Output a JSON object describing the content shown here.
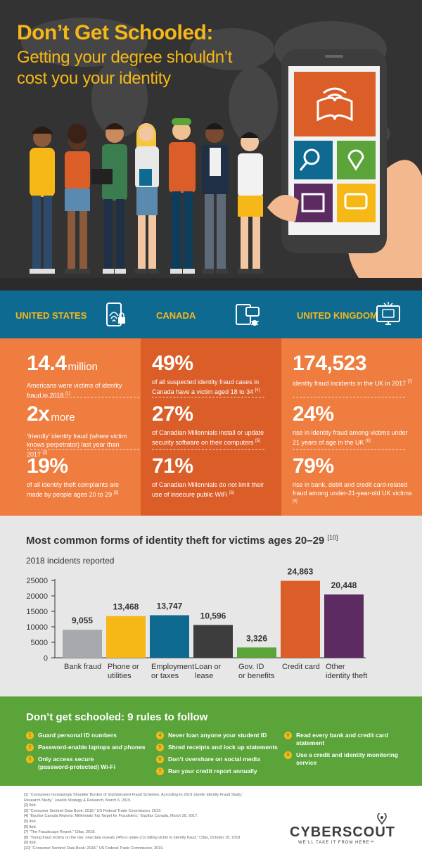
{
  "hero": {
    "title": "Don’t Get Schooled:",
    "subtitle_line1": "Getting your degree shouldn’t",
    "subtitle_line2": "cost you your identity"
  },
  "stats": {
    "columns": [
      {
        "country": "UNITED STATES",
        "icon": "fingerprint-lock-icon",
        "items": [
          {
            "value": "14.4",
            "unit": "million",
            "desc": "Americans were victims of identity fraud in 2018",
            "ref": "[1]"
          },
          {
            "value": "2x",
            "unit": "more",
            "desc": "‘friendly’ identity fraud (where victim knows perpetrator) last year than 2017",
            "ref": "[2]"
          },
          {
            "value": "19%",
            "unit": "",
            "desc": "of all identity theft complaints are made by people ages 20 to 29",
            "ref": "[3]"
          }
        ]
      },
      {
        "country": "CANADA",
        "icon": "devices-bug-icon",
        "items": [
          {
            "value": "49%",
            "unit": "",
            "desc": "of all suspected identity fraud cases in Canada have a victim aged 18 to 34",
            "ref": "[4]"
          },
          {
            "value": "27%",
            "unit": "",
            "desc": "of Canadian Millennials install or update security software on their computers",
            "ref": "[5]"
          },
          {
            "value": "71%",
            "unit": "",
            "desc": "of Canadian Millennials do not limit their use of insecure public WiFi",
            "ref": "[6]"
          }
        ]
      },
      {
        "country": "UNITED KINGDOM",
        "icon": "monitor-card-icon",
        "items": [
          {
            "value": "174,523",
            "unit": "",
            "desc": "identity fraud incidents in the UK in 2017",
            "ref": "[7]"
          },
          {
            "value": "24%",
            "unit": "",
            "desc": "rise in identity fraud among victims under 21 years of age in the UK",
            "ref": "[8]"
          },
          {
            "value": "79%",
            "unit": "",
            "desc": "rise in bank, debit and credit card-related fraud among under-21-year-old UK victims",
            "ref": "[9]"
          }
        ]
      }
    ]
  },
  "chart_section": {
    "title": "Most common forms of identity theft for victims ages 20–29",
    "title_ref": "[10]"
  },
  "chart_data": {
    "type": "bar",
    "title": "Most common forms of identity theft for victims ages 20–29",
    "subtitle": "2018 incidents reported",
    "categories": [
      "Bank fraud",
      "Phone or utilities",
      "Employment or taxes",
      "Loan or lease",
      "Gov. ID or benefits",
      "Credit card",
      "Other identity theft"
    ],
    "category_lines": [
      [
        "Bank fraud"
      ],
      [
        "Phone or",
        "utilities"
      ],
      [
        "Employment",
        "or taxes"
      ],
      [
        "Loan or",
        "lease"
      ],
      [
        "Gov. ID",
        "or benefits"
      ],
      [
        "Credit card"
      ],
      [
        "Other",
        "identity theft"
      ]
    ],
    "values": [
      9055,
      13468,
      13747,
      10596,
      3326,
      24863,
      20448
    ],
    "value_labels": [
      "9,055",
      "13,468",
      "13,747",
      "10,596",
      "3,326",
      "24,863",
      "20,448"
    ],
    "colors": [
      "#a7a9ac",
      "#f6b817",
      "#0e6a91",
      "#3d3d3d",
      "#5aa43a",
      "#db5d28",
      "#5b2b62"
    ],
    "ylim": [
      0,
      25000
    ],
    "yticks": [
      0,
      5000,
      10000,
      15000,
      20000,
      25000
    ],
    "grid": false,
    "legend": "none"
  },
  "rules": {
    "title": "Don’t get schooled: 9 rules to follow",
    "bullet_color": "#f6b817",
    "items": [
      {
        "num": "1",
        "lines": [
          "Guard personal ID numbers"
        ]
      },
      {
        "num": "2",
        "lines": [
          "Password-enable laptops and phones"
        ]
      },
      {
        "num": "3",
        "lines": [
          "Only access secure",
          "(password-protected) Wi-Fi"
        ]
      },
      {
        "num": "4",
        "lines": [
          "Never loan anyone your student ID"
        ]
      },
      {
        "num": "5",
        "lines": [
          "Shred receipts and lock up statements"
        ]
      },
      {
        "num": "6",
        "lines": [
          "Don’t overshare on social media"
        ]
      },
      {
        "num": "7",
        "lines": [
          "Run your credit report annually"
        ]
      },
      {
        "num": "8",
        "lines": [
          "Read every bank and credit card",
          "statement"
        ]
      },
      {
        "num": "9",
        "lines": [
          "Use a credit and identity monitoring",
          "service"
        ]
      }
    ]
  },
  "footnotes": [
    "[1] “Consumers Increasingly Shoulder Burden of Sophisticated Fraud Schemes, According to 2019 Javelin Identity Fraud Study,”",
    "Research Study,” Javelin Strategy & Research, March 6, 2019.",
    "[2] Ibid.",
    "[3] “Consumer Sentinel Data Book: 2018,” US Federal Trade Commission, 2019.",
    "[4] “Equifax Canada Reports: Millennials Top Target for Fraudsters,” Equifax Canada, March 28, 2017.",
    "[5] Ibid.",
    "[6] Ibid.",
    "[7] “The Fraudscape Report,” Cifas, 2018.",
    "[8] “Young fraud victims on the rise: new data reveals 24% in under-21s falling victim to identity fraud,” Cifas, October 10, 2018",
    "[9] Ibid.",
    "[10] “Consumer Sentinel Data Book: 2018,” US Federal Trade Commission, 2019."
  ],
  "brand": {
    "name": "CYBERSCOUT",
    "tagline": "WE’LL TAKE IT FROM HERE™",
    "colors": {
      "yellow": "#f6b817",
      "blue": "#0e6a91",
      "orange": "#ee7d3f",
      "dark_orange": "#db5d28",
      "green": "#5aa43a",
      "dark": "#333333"
    }
  }
}
